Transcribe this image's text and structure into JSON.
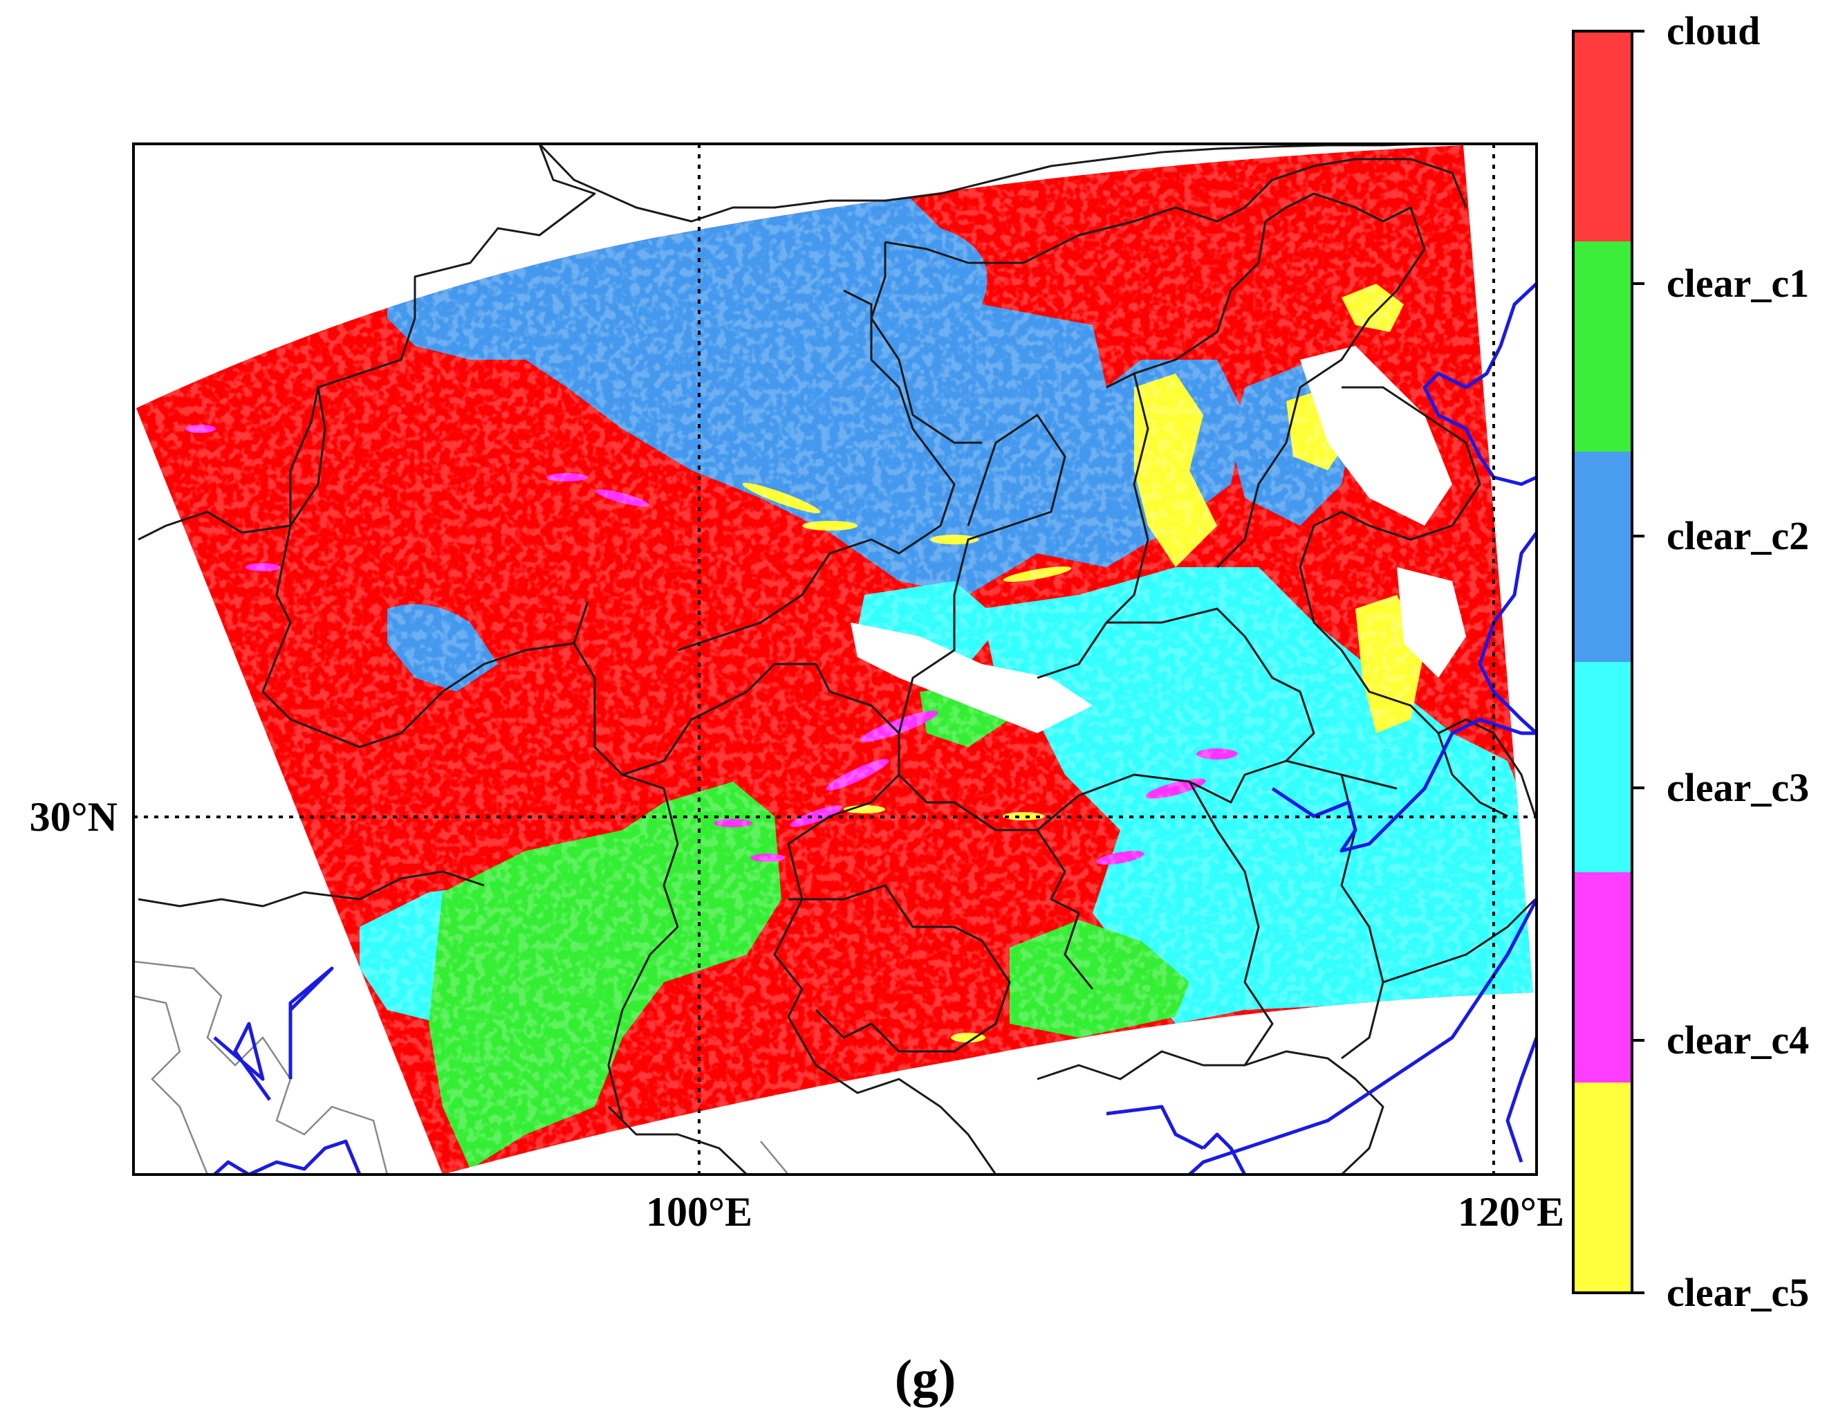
{
  "figure": {
    "panel_label": "(g)"
  },
  "map": {
    "grid": {
      "longitude_labels": [
        "100°E",
        "120°E"
      ],
      "latitude_labels": [
        "30°N"
      ]
    },
    "classes": [
      {
        "name": "cloud",
        "color": "#ff0000"
      },
      {
        "name": "clear_c1",
        "color": "#33ee33"
      },
      {
        "name": "clear_c2",
        "color": "#4499ee"
      },
      {
        "name": "clear_c3",
        "color": "#33ffff"
      },
      {
        "name": "clear_c4",
        "color": "#ff33ff"
      },
      {
        "name": "clear_c5",
        "color": "#ffff33"
      }
    ],
    "colors": {
      "coastline": "#1a1ae6",
      "borders": "#1a1a1a",
      "grid": "#000000"
    }
  }
}
